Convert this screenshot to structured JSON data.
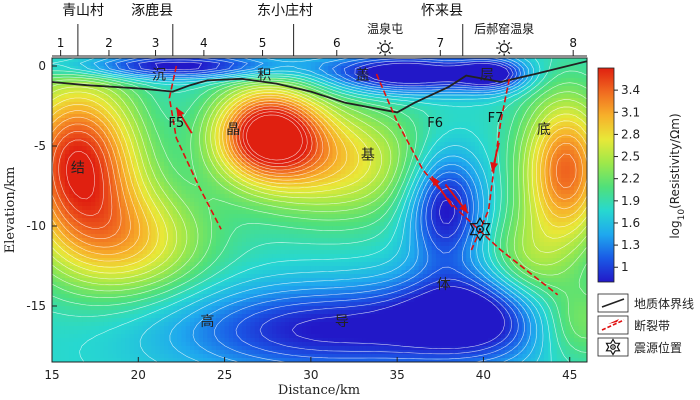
{
  "colors": {
    "boundary": "#222222",
    "fault": "#e01010",
    "contour": "#ffffff",
    "colormap": [
      "#2218c8",
      "#1a5ae6",
      "#1fa8ee",
      "#27d8d0",
      "#50e07a",
      "#9ee84a",
      "#e8e838",
      "#f7b02a",
      "#f06a20",
      "#e02010"
    ]
  },
  "chart_data": {
    "type": "heatmap",
    "xlabel": "Distance/km",
    "ylabel": "Elevation/km",
    "xlim": [
      15,
      46
    ],
    "ylim": [
      -18.5,
      0.5
    ],
    "xticks": [
      15,
      20,
      25,
      30,
      35,
      40,
      45
    ],
    "yticks": [
      0,
      -5,
      -10,
      -15
    ],
    "colorbar": {
      "label": "log10(Resistivity/Ωm)",
      "range": [
        0.8,
        3.7
      ],
      "ticks": [
        3.4,
        3.1,
        2.8,
        2.5,
        2.2,
        1.9,
        1.6,
        1.3,
        1.0
      ],
      "tick_labels": [
        "3.4",
        "3.1",
        "2.8",
        "2.5",
        "2.2",
        "1.9",
        "1.6",
        "1.3",
        "1"
      ]
    },
    "stations": [
      {
        "label": "1",
        "x": 15.5
      },
      {
        "label": "2",
        "x": 18.3
      },
      {
        "label": "3",
        "x": 21.0
      },
      {
        "label": "4",
        "x": 23.8
      },
      {
        "label": "5",
        "x": 27.2
      },
      {
        "label": "6",
        "x": 31.5
      },
      {
        "label": "7",
        "x": 37.5
      },
      {
        "label": "8",
        "x": 45.2
      }
    ],
    "villages": [
      {
        "name": "青山村",
        "x": 16.8
      },
      {
        "name": "涿鹿县",
        "x": 20.8
      },
      {
        "name": "东小庄村",
        "x": 28.5
      },
      {
        "name": "怀来县",
        "x": 37.6
      }
    ],
    "village_dividers": [
      16.5,
      22.0,
      29.0,
      38.8
    ],
    "hot_springs": [
      {
        "name": "温泉屯",
        "x": 34.3
      },
      {
        "name": "后郝窑温泉",
        "x": 41.2
      }
    ],
    "boundary_line": [
      [
        15,
        -1.0
      ],
      [
        17,
        -1.2
      ],
      [
        20,
        -1.4
      ],
      [
        22,
        -1.6
      ],
      [
        23,
        -1.2
      ],
      [
        24,
        -0.9
      ],
      [
        26,
        -0.8
      ],
      [
        28,
        -1.1
      ],
      [
        30,
        -1.6
      ],
      [
        32,
        -2.3
      ],
      [
        34,
        -2.7
      ],
      [
        35,
        -2.9
      ],
      [
        36,
        -2.3
      ],
      [
        38,
        -1.3
      ],
      [
        39,
        -0.6
      ],
      [
        40,
        -0.8
      ],
      [
        41,
        -1.0
      ],
      [
        43,
        -0.5
      ],
      [
        46,
        0.3
      ]
    ],
    "faults": [
      {
        "name": "F5",
        "points": [
          [
            22.2,
            0.0
          ],
          [
            21.8,
            -2.0
          ],
          [
            22.2,
            -4.5
          ],
          [
            23.5,
            -7.5
          ],
          [
            24.8,
            -10.2
          ]
        ]
      },
      {
        "name": "F6",
        "points": [
          [
            33.8,
            -0.5
          ],
          [
            35.0,
            -3.5
          ],
          [
            36.5,
            -6.5
          ],
          [
            38.5,
            -9.0
          ],
          [
            41.0,
            -11.5
          ],
          [
            44.3,
            -14.3
          ]
        ]
      },
      {
        "name": "F7",
        "points": [
          [
            41.5,
            -0.8
          ],
          [
            41.0,
            -3.5
          ],
          [
            40.6,
            -6.5
          ],
          [
            40.3,
            -9.0
          ],
          [
            39.3,
            -11.5
          ]
        ]
      }
    ],
    "fault_labels": [
      {
        "text": "F5",
        "x": 22.2,
        "y": -3.8
      },
      {
        "text": "F6",
        "x": 37.2,
        "y": -3.8
      },
      {
        "text": "F7",
        "x": 40.7,
        "y": -3.5
      }
    ],
    "focus": {
      "x": 39.8,
      "y": -10.2
    },
    "rock_labels": [
      {
        "text": "沉",
        "x": 21.2,
        "y": -0.6
      },
      {
        "text": "积",
        "x": 27.3,
        "y": -0.6
      },
      {
        "text": "盖",
        "x": 33.0,
        "y": -0.6
      },
      {
        "text": "层",
        "x": 40.2,
        "y": -0.6
      },
      {
        "text": "结",
        "x": 16.5,
        "y": -6.4
      },
      {
        "text": "晶",
        "x": 25.5,
        "y": -4.0
      },
      {
        "text": "基",
        "x": 33.3,
        "y": -5.6
      },
      {
        "text": "底",
        "x": 43.5,
        "y": -4.0
      },
      {
        "text": "体",
        "x": 37.7,
        "y": -13.7
      },
      {
        "text": "高",
        "x": 24.0,
        "y": -16.0
      },
      {
        "text": "导",
        "x": 31.8,
        "y": -16.0
      }
    ],
    "legend": [
      {
        "type": "line",
        "label": "地质体界线"
      },
      {
        "type": "fault",
        "label": "断裂带"
      },
      {
        "type": "focus",
        "label": "震源位置"
      }
    ],
    "field_model": {
      "base": 1.8,
      "blobs": [
        {
          "x": 16.5,
          "y": -6.0,
          "sx": 3.5,
          "sy": 5.0,
          "a": 1.9
        },
        {
          "x": 27.5,
          "y": -4.2,
          "sx": 3.0,
          "sy": 2.8,
          "a": 2.1
        },
        {
          "x": 31.5,
          "y": -6.0,
          "sx": 5.0,
          "sy": 3.5,
          "a": 1.0
        },
        {
          "x": 44.8,
          "y": -6.5,
          "sx": 2.5,
          "sy": 4.5,
          "a": 1.6
        },
        {
          "x": 19.5,
          "y": -11.0,
          "sx": 4.5,
          "sy": 3.5,
          "a": 1.0
        },
        {
          "x": 37.8,
          "y": -8.8,
          "sx": 2.2,
          "sy": 3.5,
          "a": -1.1
        },
        {
          "x": 31.0,
          "y": -16.5,
          "sx": 9.0,
          "sy": 2.8,
          "a": -1.0
        },
        {
          "x": 39.5,
          "y": -15.5,
          "sx": 4.5,
          "sy": 2.8,
          "a": -1.0
        },
        {
          "x": 22.0,
          "y": 0.0,
          "sx": 7.0,
          "sy": 0.8,
          "a": -1.1
        },
        {
          "x": 35.5,
          "y": -0.5,
          "sx": 4.5,
          "sy": 1.2,
          "a": -1.3
        },
        {
          "x": 40.5,
          "y": -0.5,
          "sx": 2.0,
          "sy": 1.0,
          "a": -1.0
        },
        {
          "x": 42.5,
          "y": -12.5,
          "sx": 2.5,
          "sy": 3.0,
          "a": 0.6
        },
        {
          "x": 45.5,
          "y": -16.0,
          "sx": 2.5,
          "sy": 2.5,
          "a": 0.6
        }
      ]
    }
  }
}
